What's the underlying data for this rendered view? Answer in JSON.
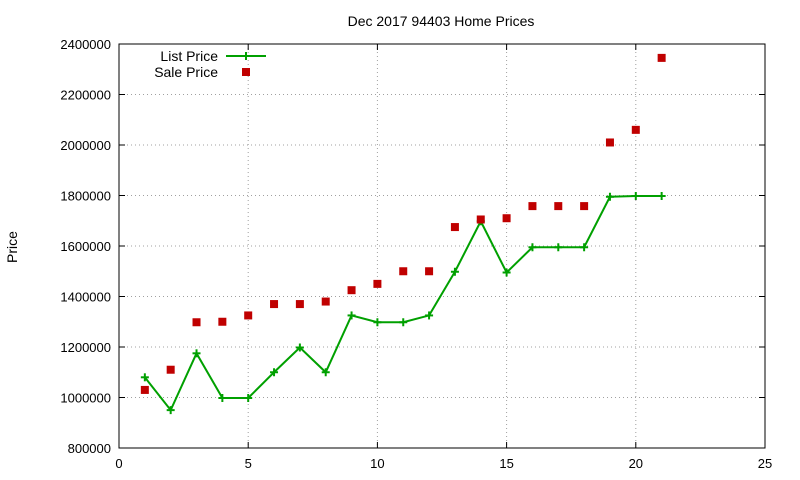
{
  "chart_data": {
    "type": "line",
    "title": "Dec 2017 94403 Home Prices",
    "xlabel": "",
    "ylabel": "Price",
    "xlim": [
      0,
      25
    ],
    "ylim": [
      800000,
      2400000
    ],
    "xticks": [
      0,
      5,
      10,
      15,
      20,
      25
    ],
    "yticks": [
      800000,
      1000000,
      1200000,
      1400000,
      1600000,
      1800000,
      2000000,
      2200000,
      2400000
    ],
    "grid": true,
    "legend_position": "top-left",
    "series": [
      {
        "name": "List Price",
        "style": "line-plus",
        "color": "#00a000",
        "points": [
          [
            1,
            1080000
          ],
          [
            2,
            950000
          ],
          [
            3,
            1175000
          ],
          [
            4,
            998000
          ],
          [
            5,
            998000
          ],
          [
            6,
            1100000
          ],
          [
            7,
            1198000
          ],
          [
            8,
            1100000
          ],
          [
            9,
            1325000
          ],
          [
            10,
            1298000
          ],
          [
            11,
            1298000
          ],
          [
            12,
            1325000
          ],
          [
            13,
            1498000
          ],
          [
            14,
            1698000
          ],
          [
            15,
            1495000
          ],
          [
            16,
            1595000
          ],
          [
            17,
            1595000
          ],
          [
            18,
            1595000
          ],
          [
            19,
            1795000
          ],
          [
            20,
            1798000
          ],
          [
            21,
            1798000
          ]
        ]
      },
      {
        "name": "Sale Price",
        "style": "square",
        "color": "#c00000",
        "points": [
          [
            1,
            1030000
          ],
          [
            2,
            1110000
          ],
          [
            3,
            1298000
          ],
          [
            4,
            1300000
          ],
          [
            5,
            1325000
          ],
          [
            6,
            1370000
          ],
          [
            7,
            1370000
          ],
          [
            8,
            1380000
          ],
          [
            9,
            1425000
          ],
          [
            10,
            1450000
          ],
          [
            11,
            1500000
          ],
          [
            12,
            1500000
          ],
          [
            13,
            1675000
          ],
          [
            14,
            1705000
          ],
          [
            15,
            1710000
          ],
          [
            16,
            1758000
          ],
          [
            17,
            1758000
          ],
          [
            18,
            1758000
          ],
          [
            19,
            2010000
          ],
          [
            20,
            2060000
          ],
          [
            21,
            2345000
          ]
        ]
      }
    ]
  }
}
